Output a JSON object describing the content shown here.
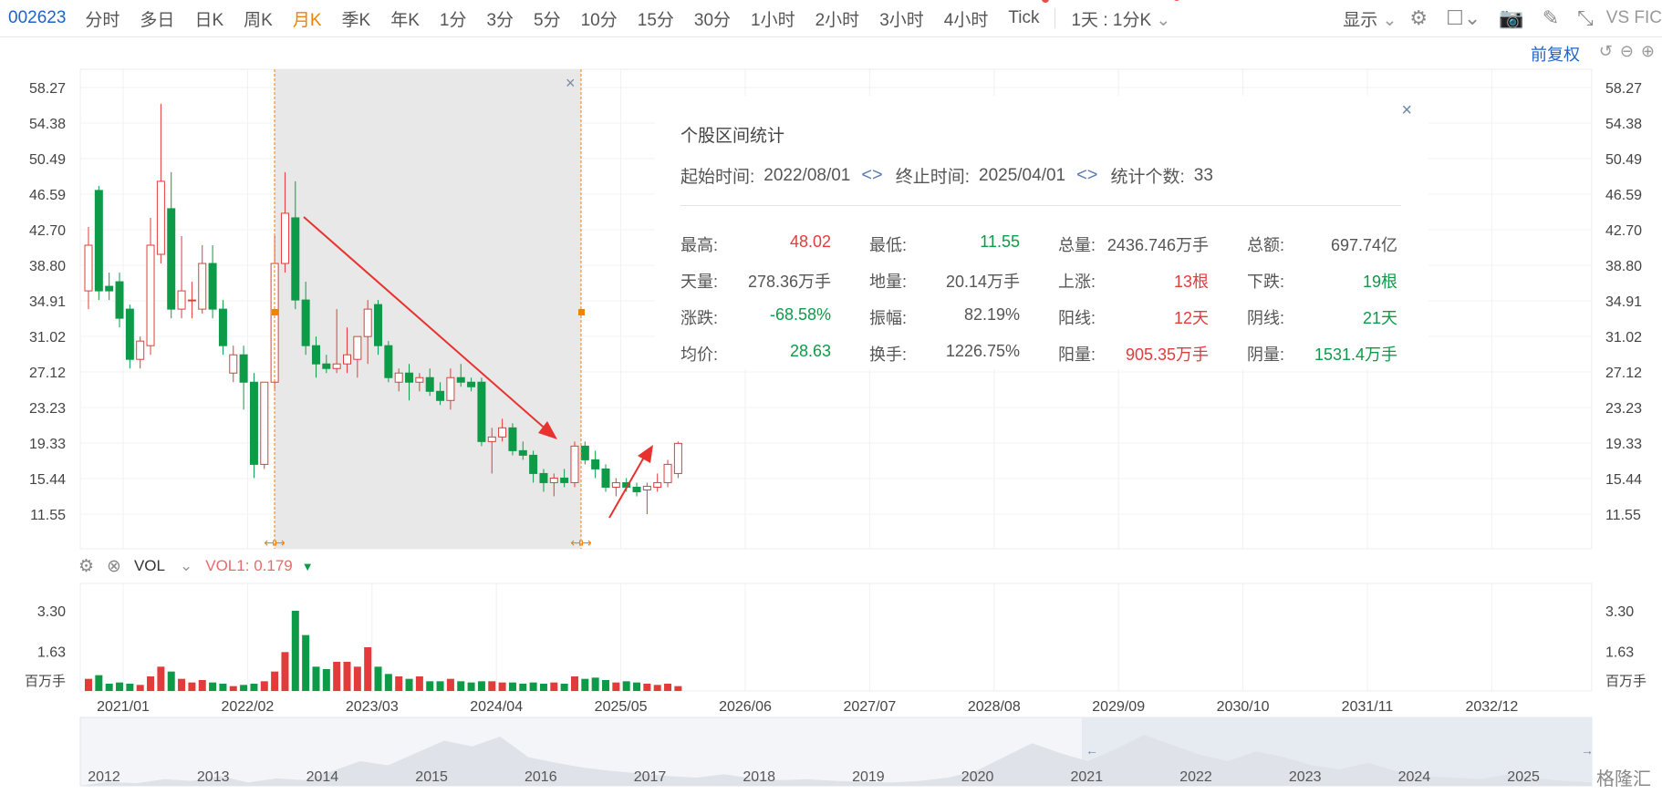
{
  "toolbar": {
    "code": "002623",
    "tabs": [
      "分时",
      "多日",
      "日K",
      "周K",
      "月K",
      "季K",
      "年K",
      "1分",
      "3分",
      "5分",
      "10分",
      "15分",
      "30分",
      "1小时",
      "2小时",
      "3小时",
      "4小时",
      "Tick"
    ],
    "active_tab": "月K",
    "period_select": "1天 : 1分K",
    "display_label": "显示",
    "vs_label": "VS FIC"
  },
  "fuquan": "前复权",
  "tooltip": {
    "title": "个股区间统计",
    "start_label": "起始时间:",
    "start_value": "2022/08/01",
    "end_label": "终止时间:",
    "end_value": "2025/04/01",
    "count_label": "统计个数:",
    "count_value": "33",
    "rows": [
      [
        [
          "最高:",
          "48.02",
          "red"
        ],
        [
          "最低:",
          "11.55",
          "green"
        ],
        [
          "总量:",
          "2436.746万手",
          ""
        ],
        [
          "总额:",
          "697.74亿",
          ""
        ]
      ],
      [
        [
          "天量:",
          "278.36万手",
          ""
        ],
        [
          "地量:",
          "20.14万手",
          ""
        ],
        [
          "上涨:",
          "13根",
          "red"
        ],
        [
          "下跌:",
          "19根",
          "green"
        ]
      ],
      [
        [
          "涨跌:",
          "-68.58%",
          "green"
        ],
        [
          "振幅:",
          "82.19%",
          ""
        ],
        [
          "阳线:",
          "12天",
          "red"
        ],
        [
          "阴线:",
          "21天",
          "green"
        ]
      ],
      [
        [
          "均价:",
          "28.63",
          "green"
        ],
        [
          "换手:",
          "1226.75%",
          ""
        ],
        [
          "阳量:",
          "905.35万手",
          "red"
        ],
        [
          "阴量:",
          "1531.4万手",
          "green"
        ]
      ]
    ]
  },
  "volume_indicator": {
    "name": "VOL",
    "vol1_label": "VOL1:",
    "vol1_value": "0.179"
  },
  "watermark": "格隆汇",
  "colors": {
    "up": "#e23b3b",
    "down": "#0d9b48",
    "selection": "#e8e8e8",
    "marker": "#f08300",
    "axis_text": "#444"
  },
  "chart_data": {
    "type": "candlestick",
    "price_axis_ticks": [
      "58.27",
      "54.38",
      "50.49",
      "46.59",
      "42.70",
      "38.80",
      "34.91",
      "31.02",
      "27.12",
      "23.23",
      "19.33",
      "15.44",
      "11.55"
    ],
    "ylim": [
      11.55,
      58.27
    ],
    "volume_axis_ticks": [
      "3.30",
      "1.63"
    ],
    "volume_unit": "百万手",
    "volume_ylim": [
      0,
      3.3
    ],
    "x_ticks": [
      "2021/01",
      "2022/02",
      "2023/03",
      "2024/04",
      "2025/05",
      "2026/06",
      "2027/07",
      "2028/08",
      "2029/09",
      "2030/10",
      "2031/11",
      "2032/12"
    ],
    "navigator_ticks": [
      "2012",
      "2013",
      "2014",
      "2015",
      "2016",
      "2017",
      "2018",
      "2019",
      "2020",
      "2021",
      "2022",
      "2023",
      "2024",
      "2025"
    ],
    "selection_range": [
      "2022/08",
      "2025/04"
    ],
    "candles": [
      {
        "o": 36,
        "h": 43,
        "l": 34,
        "c": 41,
        "v": 0.5
      },
      {
        "o": 47,
        "h": 47.5,
        "l": 35,
        "c": 36,
        "v": 0.65
      },
      {
        "o": 36.5,
        "h": 38,
        "l": 35,
        "c": 36,
        "v": 0.3
      },
      {
        "o": 37,
        "h": 38,
        "l": 32,
        "c": 33,
        "v": 0.35
      },
      {
        "o": 34,
        "h": 34.5,
        "l": 27.5,
        "c": 28.5,
        "v": 0.3
      },
      {
        "o": 28.5,
        "h": 31,
        "l": 27.5,
        "c": 30.5,
        "v": 0.25
      },
      {
        "o": 30,
        "h": 44,
        "l": 29,
        "c": 41,
        "v": 0.6
      },
      {
        "o": 40,
        "h": 56.5,
        "l": 39,
        "c": 48,
        "v": 1.0
      },
      {
        "o": 45,
        "h": 49,
        "l": 33,
        "c": 34,
        "v": 0.8
      },
      {
        "o": 34,
        "h": 42,
        "l": 33,
        "c": 36,
        "v": 0.5
      },
      {
        "o": 35,
        "h": 37,
        "l": 33,
        "c": 35,
        "v": 0.35
      },
      {
        "o": 34,
        "h": 41,
        "l": 33.5,
        "c": 39,
        "v": 0.45
      },
      {
        "o": 39,
        "h": 41,
        "l": 33,
        "c": 34,
        "v": 0.35
      },
      {
        "o": 34,
        "h": 35,
        "l": 29,
        "c": 30,
        "v": 0.3
      },
      {
        "o": 27,
        "h": 30,
        "l": 26,
        "c": 29,
        "v": 0.2
      },
      {
        "o": 29,
        "h": 30,
        "l": 23,
        "c": 26,
        "v": 0.25
      },
      {
        "o": 26,
        "h": 27,
        "l": 15.5,
        "c": 17,
        "v": 0.3
      },
      {
        "o": 17,
        "h": 26,
        "l": 16.5,
        "c": 26,
        "v": 0.4
      },
      {
        "o": 26,
        "h": 42,
        "l": 25,
        "c": 39,
        "v": 0.8
      },
      {
        "o": 39,
        "h": 49,
        "l": 38,
        "c": 44.5,
        "v": 1.6
      },
      {
        "o": 44,
        "h": 48,
        "l": 34,
        "c": 35,
        "v": 3.3
      },
      {
        "o": 35,
        "h": 37,
        "l": 29,
        "c": 30,
        "v": 2.3
      },
      {
        "o": 30,
        "h": 31,
        "l": 26.5,
        "c": 28,
        "v": 1.0
      },
      {
        "o": 28,
        "h": 29,
        "l": 27,
        "c": 27.5,
        "v": 0.9
      },
      {
        "o": 27.5,
        "h": 34,
        "l": 27,
        "c": 28,
        "v": 1.2
      },
      {
        "o": 28,
        "h": 32,
        "l": 27,
        "c": 29,
        "v": 1.2
      },
      {
        "o": 28.5,
        "h": 31,
        "l": 26.5,
        "c": 31,
        "v": 1.0
      },
      {
        "o": 31,
        "h": 35,
        "l": 28,
        "c": 34,
        "v": 1.8
      },
      {
        "o": 34.5,
        "h": 35,
        "l": 29,
        "c": 30,
        "v": 1.0
      },
      {
        "o": 30,
        "h": 30.5,
        "l": 26,
        "c": 26.5,
        "v": 0.7
      },
      {
        "o": 26,
        "h": 27.5,
        "l": 25,
        "c": 27,
        "v": 0.6
      },
      {
        "o": 27,
        "h": 28,
        "l": 24,
        "c": 26,
        "v": 0.5
      },
      {
        "o": 26,
        "h": 27,
        "l": 25,
        "c": 26.5,
        "v": 0.6
      },
      {
        "o": 26.5,
        "h": 27.5,
        "l": 24.5,
        "c": 25,
        "v": 0.4
      },
      {
        "o": 25,
        "h": 26,
        "l": 23.5,
        "c": 24,
        "v": 0.4
      },
      {
        "o": 24,
        "h": 27.5,
        "l": 23,
        "c": 26.5,
        "v": 0.5
      },
      {
        "o": 26.5,
        "h": 28,
        "l": 25.5,
        "c": 26,
        "v": 0.4
      },
      {
        "o": 26,
        "h": 26.5,
        "l": 25,
        "c": 25.5,
        "v": 0.35
      },
      {
        "o": 26,
        "h": 26.5,
        "l": 19,
        "c": 19.5,
        "v": 0.4
      },
      {
        "o": 19.5,
        "h": 21,
        "l": 16,
        "c": 20,
        "v": 0.4
      },
      {
        "o": 20,
        "h": 22,
        "l": 19.5,
        "c": 21,
        "v": 0.35
      },
      {
        "o": 21,
        "h": 21.5,
        "l": 18,
        "c": 18.5,
        "v": 0.35
      },
      {
        "o": 18.5,
        "h": 19.5,
        "l": 17.5,
        "c": 18,
        "v": 0.3
      },
      {
        "o": 18,
        "h": 18.5,
        "l": 15,
        "c": 16,
        "v": 0.35
      },
      {
        "o": 16,
        "h": 16.5,
        "l": 14,
        "c": 15,
        "v": 0.3
      },
      {
        "o": 15,
        "h": 16,
        "l": 13.5,
        "c": 15.5,
        "v": 0.35
      },
      {
        "o": 15.5,
        "h": 16.5,
        "l": 14.5,
        "c": 15,
        "v": 0.3
      },
      {
        "o": 15,
        "h": 19.5,
        "l": 14.5,
        "c": 19,
        "v": 0.6
      },
      {
        "o": 19,
        "h": 19.5,
        "l": 17,
        "c": 17.5,
        "v": 0.5
      },
      {
        "o": 17.5,
        "h": 18.5,
        "l": 15.5,
        "c": 16.5,
        "v": 0.55
      },
      {
        "o": 16.5,
        "h": 17,
        "l": 14,
        "c": 14.5,
        "v": 0.45
      },
      {
        "o": 14.5,
        "h": 15.5,
        "l": 13.5,
        "c": 15,
        "v": 0.35
      },
      {
        "o": 15,
        "h": 15.5,
        "l": 14,
        "c": 14.5,
        "v": 0.4
      },
      {
        "o": 14.5,
        "h": 15,
        "l": 13.5,
        "c": 14,
        "v": 0.35
      },
      {
        "o": 14.2,
        "h": 15,
        "l": 11.55,
        "c": 14.6,
        "v": 0.3
      },
      {
        "o": 14.5,
        "h": 16,
        "l": 14,
        "c": 15,
        "v": 0.25
      },
      {
        "o": 15,
        "h": 17.5,
        "l": 14.5,
        "c": 17,
        "v": 0.3
      },
      {
        "o": 16,
        "h": 19.5,
        "l": 15.5,
        "c": 19.3,
        "v": 0.2
      }
    ]
  }
}
